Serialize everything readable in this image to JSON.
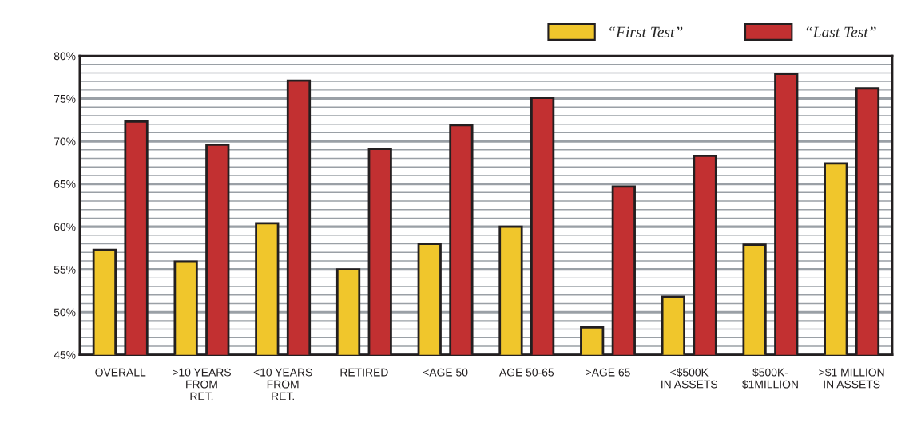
{
  "chart_data": {
    "type": "bar",
    "categories": [
      "OVERALL",
      ">10 YEARS\nFROM\nRET.",
      "<10 YEARS\nFROM\nRET.",
      "RETIRED",
      "<AGE 50",
      "AGE 50-65",
      ">AGE 65",
      "<$500K\nIN ASSETS",
      "$500K-\n$1MILLION",
      ">$1 MILLION\nIN ASSETS"
    ],
    "series": [
      {
        "name": "“First Test”",
        "color": "#f0c62c",
        "values": [
          57.3,
          55.9,
          60.4,
          55.0,
          58.0,
          60.0,
          48.2,
          51.8,
          57.9,
          67.4
        ]
      },
      {
        "name": "“Last Test”",
        "color": "#c23031",
        "values": [
          72.3,
          69.6,
          77.1,
          69.1,
          71.9,
          75.1,
          64.7,
          68.3,
          77.9,
          76.2
        ]
      }
    ],
    "ylim": [
      45,
      80
    ],
    "yticks": [
      {
        "value": 45,
        "label": "45%"
      },
      {
        "value": 46,
        "label": null
      },
      {
        "value": 47,
        "label": null
      },
      {
        "value": 48,
        "label": null
      },
      {
        "value": 49,
        "label": null
      },
      {
        "value": 50,
        "label": "50%"
      },
      {
        "value": 51,
        "label": null
      },
      {
        "value": 52,
        "label": null
      },
      {
        "value": 53,
        "label": null
      },
      {
        "value": 54,
        "label": null
      },
      {
        "value": 55,
        "label": "55%"
      },
      {
        "value": 56,
        "label": null
      },
      {
        "value": 57,
        "label": null
      },
      {
        "value": 58,
        "label": null
      },
      {
        "value": 59,
        "label": null
      },
      {
        "value": 60,
        "label": "60%"
      },
      {
        "value": 61,
        "label": null
      },
      {
        "value": 62,
        "label": null
      },
      {
        "value": 63,
        "label": null
      },
      {
        "value": 64,
        "label": null
      },
      {
        "value": 65,
        "label": "65%"
      },
      {
        "value": 66,
        "label": null
      },
      {
        "value": 67,
        "label": null
      },
      {
        "value": 68,
        "label": null
      },
      {
        "value": 69,
        "label": null
      },
      {
        "value": 70,
        "label": "70%"
      },
      {
        "value": 71,
        "label": null
      },
      {
        "value": 72,
        "label": null
      },
      {
        "value": 73,
        "label": null
      },
      {
        "value": 74,
        "label": null
      },
      {
        "value": 75,
        "label": "75%"
      },
      {
        "value": 76,
        "label": null
      },
      {
        "value": 77,
        "label": null
      },
      {
        "value": 78,
        "label": null
      },
      {
        "value": 79,
        "label": null
      },
      {
        "value": 80,
        "label": "80%"
      }
    ],
    "grid": "y",
    "legend": "top right"
  }
}
